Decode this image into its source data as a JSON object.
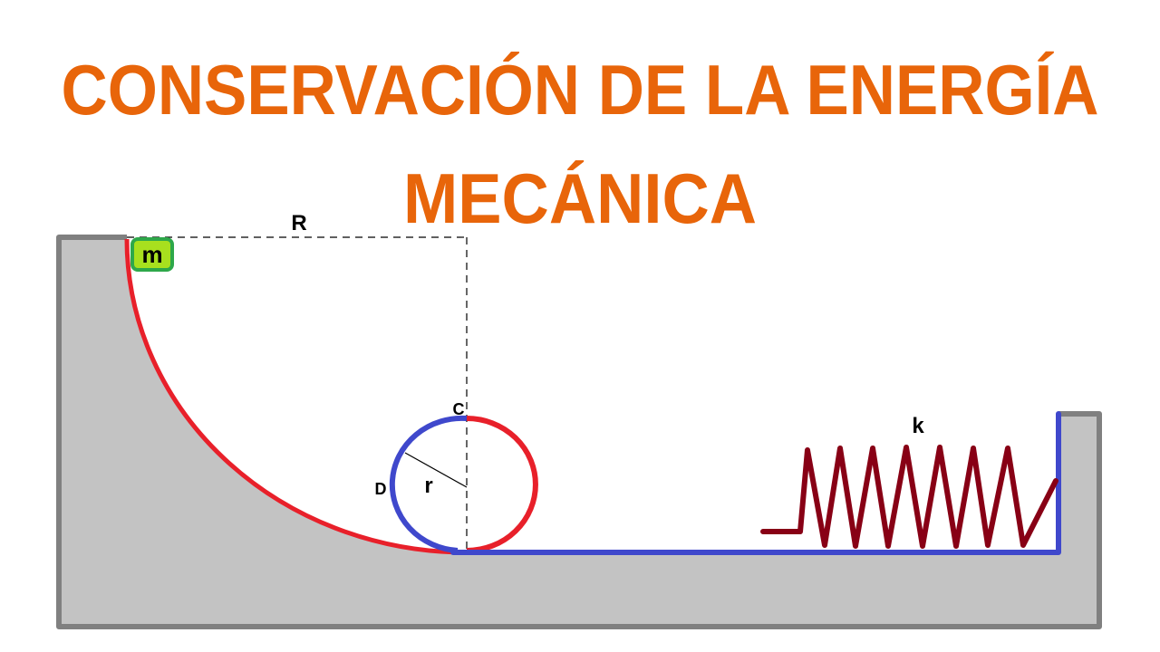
{
  "title": {
    "line1": "CONSERVACIÓN DE LA ENERGÍA",
    "line2": "MECÁNICA",
    "color": "#E8650A"
  },
  "labels": {
    "mass": "m",
    "big_radius": "R",
    "small_radius": "r",
    "point_c": "C",
    "point_d": "D",
    "spring_constant": "k"
  },
  "colors": {
    "ground_fill": "#C3C3C3",
    "ground_outline": "#808080",
    "friction_track": "#E8202A",
    "frictionless_track": "#3F48CC",
    "spring": "#880015",
    "mass_fill": "#A8E01E",
    "mass_border": "#2EA84A"
  }
}
